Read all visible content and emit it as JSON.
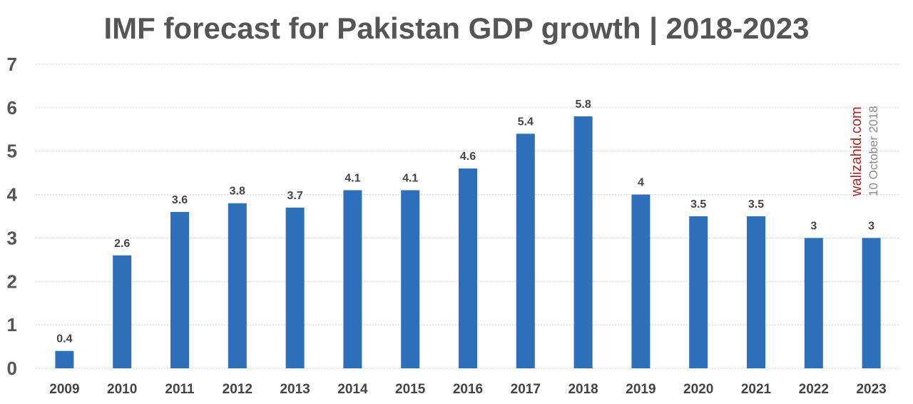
{
  "chart_data": {
    "type": "bar",
    "title": "IMF forecast for Pakistan GDP growth | 2018-2023",
    "categories": [
      "2009",
      "2010",
      "2011",
      "2012",
      "2013",
      "2014",
      "2015",
      "2016",
      "2017",
      "2018",
      "2019",
      "2020",
      "2021",
      "2022",
      "2023"
    ],
    "values": [
      0.4,
      2.6,
      3.6,
      3.8,
      3.7,
      4.1,
      4.1,
      4.6,
      5.4,
      5.8,
      4,
      3.5,
      3.5,
      3,
      3
    ],
    "data_labels": [
      "0.4",
      "2.6",
      "3.6",
      "3.8",
      "3.7",
      "4.1",
      "4.1",
      "4.6",
      "5.4",
      "5.8",
      "4",
      "3.5",
      "3.5",
      "3",
      "3"
    ],
    "ylim": [
      0,
      7
    ],
    "yticks": [
      "0",
      "1",
      "2",
      "3",
      "4",
      "5",
      "6",
      "7"
    ],
    "xlabel": "",
    "ylabel": "",
    "grid": true,
    "legend": "none",
    "bar_color": "#2e6fb9"
  },
  "watermark": {
    "site": "walizahid.com",
    "date": "10 October 2018",
    "site_color": "#a52a2a"
  }
}
